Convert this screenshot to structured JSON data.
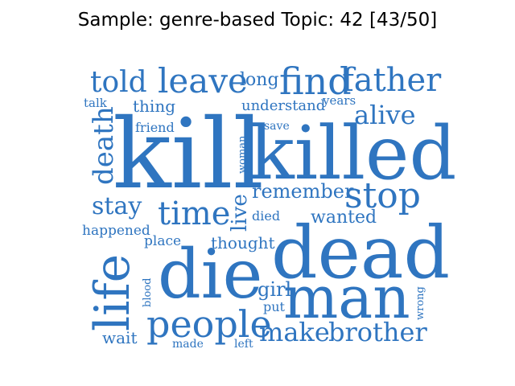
{
  "title": "Sample: genre-based Topic: 42 [43/50]",
  "word_color": "#2f75c0",
  "words": [
    {
      "text": "kill"
    },
    {
      "text": "killed"
    },
    {
      "text": "dead"
    },
    {
      "text": "man"
    },
    {
      "text": "die"
    },
    {
      "text": "life"
    },
    {
      "text": "people"
    },
    {
      "text": "make"
    },
    {
      "text": "brother"
    },
    {
      "text": "find"
    },
    {
      "text": "father"
    },
    {
      "text": "leave"
    },
    {
      "text": "told"
    },
    {
      "text": "stop"
    },
    {
      "text": "time"
    },
    {
      "text": "death"
    },
    {
      "text": "alive"
    },
    {
      "text": "stay"
    },
    {
      "text": "remember"
    },
    {
      "text": "live"
    },
    {
      "text": "long"
    },
    {
      "text": "wanted"
    },
    {
      "text": "understand"
    },
    {
      "text": "thought"
    },
    {
      "text": "girl"
    },
    {
      "text": "thing"
    },
    {
      "text": "friend"
    },
    {
      "text": "happened"
    },
    {
      "text": "place"
    },
    {
      "text": "wait"
    },
    {
      "text": "years"
    },
    {
      "text": "talk"
    },
    {
      "text": "save"
    },
    {
      "text": "woman"
    },
    {
      "text": "died"
    },
    {
      "text": "blood"
    },
    {
      "text": "put"
    },
    {
      "text": "wrong"
    },
    {
      "text": "made"
    },
    {
      "text": "left"
    }
  ]
}
